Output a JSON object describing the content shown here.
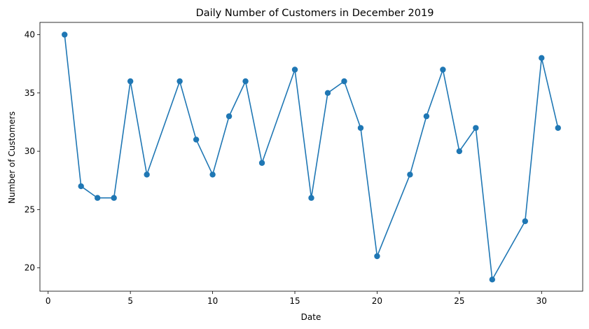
{
  "chart_data": {
    "type": "line",
    "title": "Daily Number of Customers in December 2019",
    "xlabel": "Date",
    "ylabel": "Number of Customers",
    "xlim": [
      -0.5,
      32.5
    ],
    "ylim": [
      18.0,
      41.05
    ],
    "xticks": [
      0,
      5,
      10,
      15,
      20,
      25,
      30
    ],
    "yticks": [
      20,
      25,
      30,
      35,
      40
    ],
    "grid": false,
    "marker": "circle",
    "series": [
      {
        "color": "#1f77b4",
        "x": [
          1,
          2,
          3,
          4,
          5,
          6,
          8,
          9,
          10,
          11,
          12,
          13,
          15,
          16,
          17,
          18,
          19,
          20,
          22,
          23,
          24,
          25,
          26,
          27,
          29,
          30,
          31
        ],
        "y": [
          40,
          27,
          26,
          26,
          36,
          28,
          36,
          31,
          28,
          33,
          36,
          29,
          37,
          26,
          35,
          36,
          32,
          21,
          28,
          33,
          37,
          30,
          32,
          19,
          24,
          38,
          32
        ]
      }
    ]
  }
}
